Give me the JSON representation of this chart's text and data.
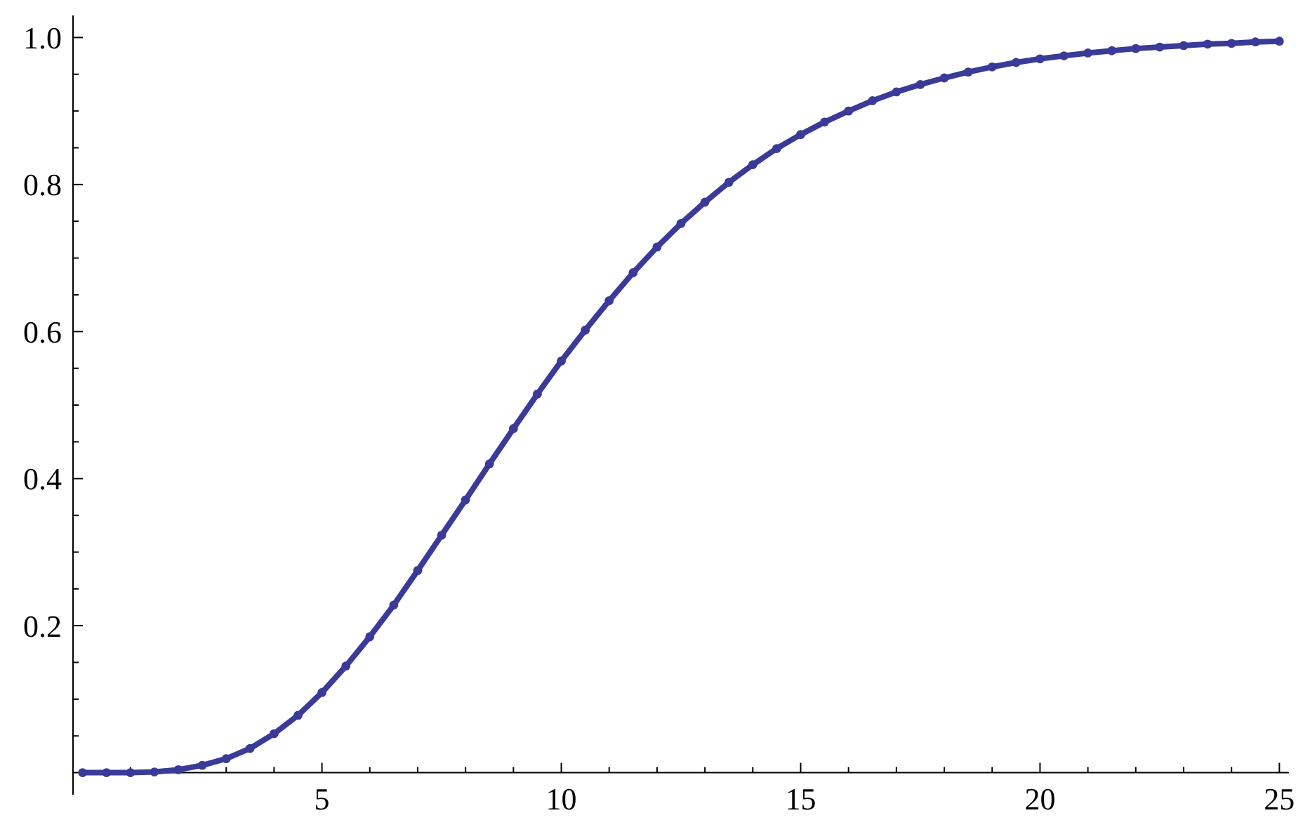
{
  "chart_data": {
    "type": "line",
    "marker": "circle",
    "grid": false,
    "xlim": [
      -0.2,
      25.2
    ],
    "ylim": [
      -0.03,
      1.03
    ],
    "xticks": [
      {
        "value": 1,
        "label": null
      },
      {
        "value": 2,
        "label": null
      },
      {
        "value": 3,
        "label": null
      },
      {
        "value": 4,
        "label": null
      },
      5,
      {
        "value": 6,
        "label": null
      },
      {
        "value": 7,
        "label": null
      },
      {
        "value": 8,
        "label": null
      },
      {
        "value": 9,
        "label": null
      },
      10,
      {
        "value": 11,
        "label": null
      },
      {
        "value": 12,
        "label": null
      },
      {
        "value": 13,
        "label": null
      },
      {
        "value": 14,
        "label": null
      },
      15,
      {
        "value": 16,
        "label": null
      },
      {
        "value": 17,
        "label": null
      },
      {
        "value": 18,
        "label": null
      },
      {
        "value": 19,
        "label": null
      },
      20,
      {
        "value": 21,
        "label": null
      },
      {
        "value": 22,
        "label": null
      },
      {
        "value": 23,
        "label": null
      },
      {
        "value": 24,
        "label": null
      },
      25
    ],
    "yticks": [
      {
        "value": 0.05,
        "label": null
      },
      {
        "value": 0.1,
        "label": null
      },
      {
        "value": 0.15,
        "label": null
      },
      {
        "value": 0.2,
        "label": "0.2"
      },
      {
        "value": 0.25,
        "label": null
      },
      {
        "value": 0.3,
        "label": null
      },
      {
        "value": 0.35,
        "label": null
      },
      {
        "value": 0.4,
        "label": "0.4"
      },
      {
        "value": 0.45,
        "label": null
      },
      {
        "value": 0.5,
        "label": null
      },
      {
        "value": 0.55,
        "label": null
      },
      {
        "value": 0.6,
        "label": "0.6"
      },
      {
        "value": 0.65,
        "label": null
      },
      {
        "value": 0.7,
        "label": null
      },
      {
        "value": 0.75,
        "label": null
      },
      {
        "value": 0.8,
        "label": "0.8"
      },
      {
        "value": 0.85,
        "label": null
      },
      {
        "value": 0.9,
        "label": null
      },
      {
        "value": 0.95,
        "label": null
      },
      {
        "value": 1,
        "label": "1.0"
      }
    ],
    "series": [
      {
        "color": "#3a3a99",
        "x": [
          0,
          0.5,
          1,
          1.5,
          2,
          2.5,
          3,
          3.5,
          4,
          4.5,
          5,
          5.5,
          6,
          6.5,
          7,
          7.5,
          8,
          8.5,
          9,
          9.5,
          10,
          10.5,
          11,
          11.5,
          12,
          12.5,
          13,
          13.5,
          14,
          14.5,
          15,
          15.5,
          16,
          16.5,
          17,
          17.5,
          18,
          18.5,
          19,
          19.5,
          20,
          20.5,
          21,
          21.5,
          22,
          22.5,
          23,
          23.5,
          24,
          24.5,
          25
        ],
        "values": [
          0,
          0,
          0,
          0.001,
          0.004,
          0.01,
          0.019,
          0.033,
          0.053,
          0.078,
          0.109,
          0.145,
          0.185,
          0.228,
          0.275,
          0.323,
          0.371,
          0.42,
          0.468,
          0.515,
          0.56,
          0.602,
          0.642,
          0.68,
          0.715,
          0.747,
          0.776,
          0.803,
          0.827,
          0.849,
          0.868,
          0.885,
          0.9,
          0.914,
          0.926,
          0.936,
          0.945,
          0.953,
          0.96,
          0.966,
          0.971,
          0.975,
          0.979,
          0.982,
          0.985,
          0.987,
          0.989,
          0.991,
          0.992,
          0.994,
          0.995
        ]
      }
    ]
  }
}
